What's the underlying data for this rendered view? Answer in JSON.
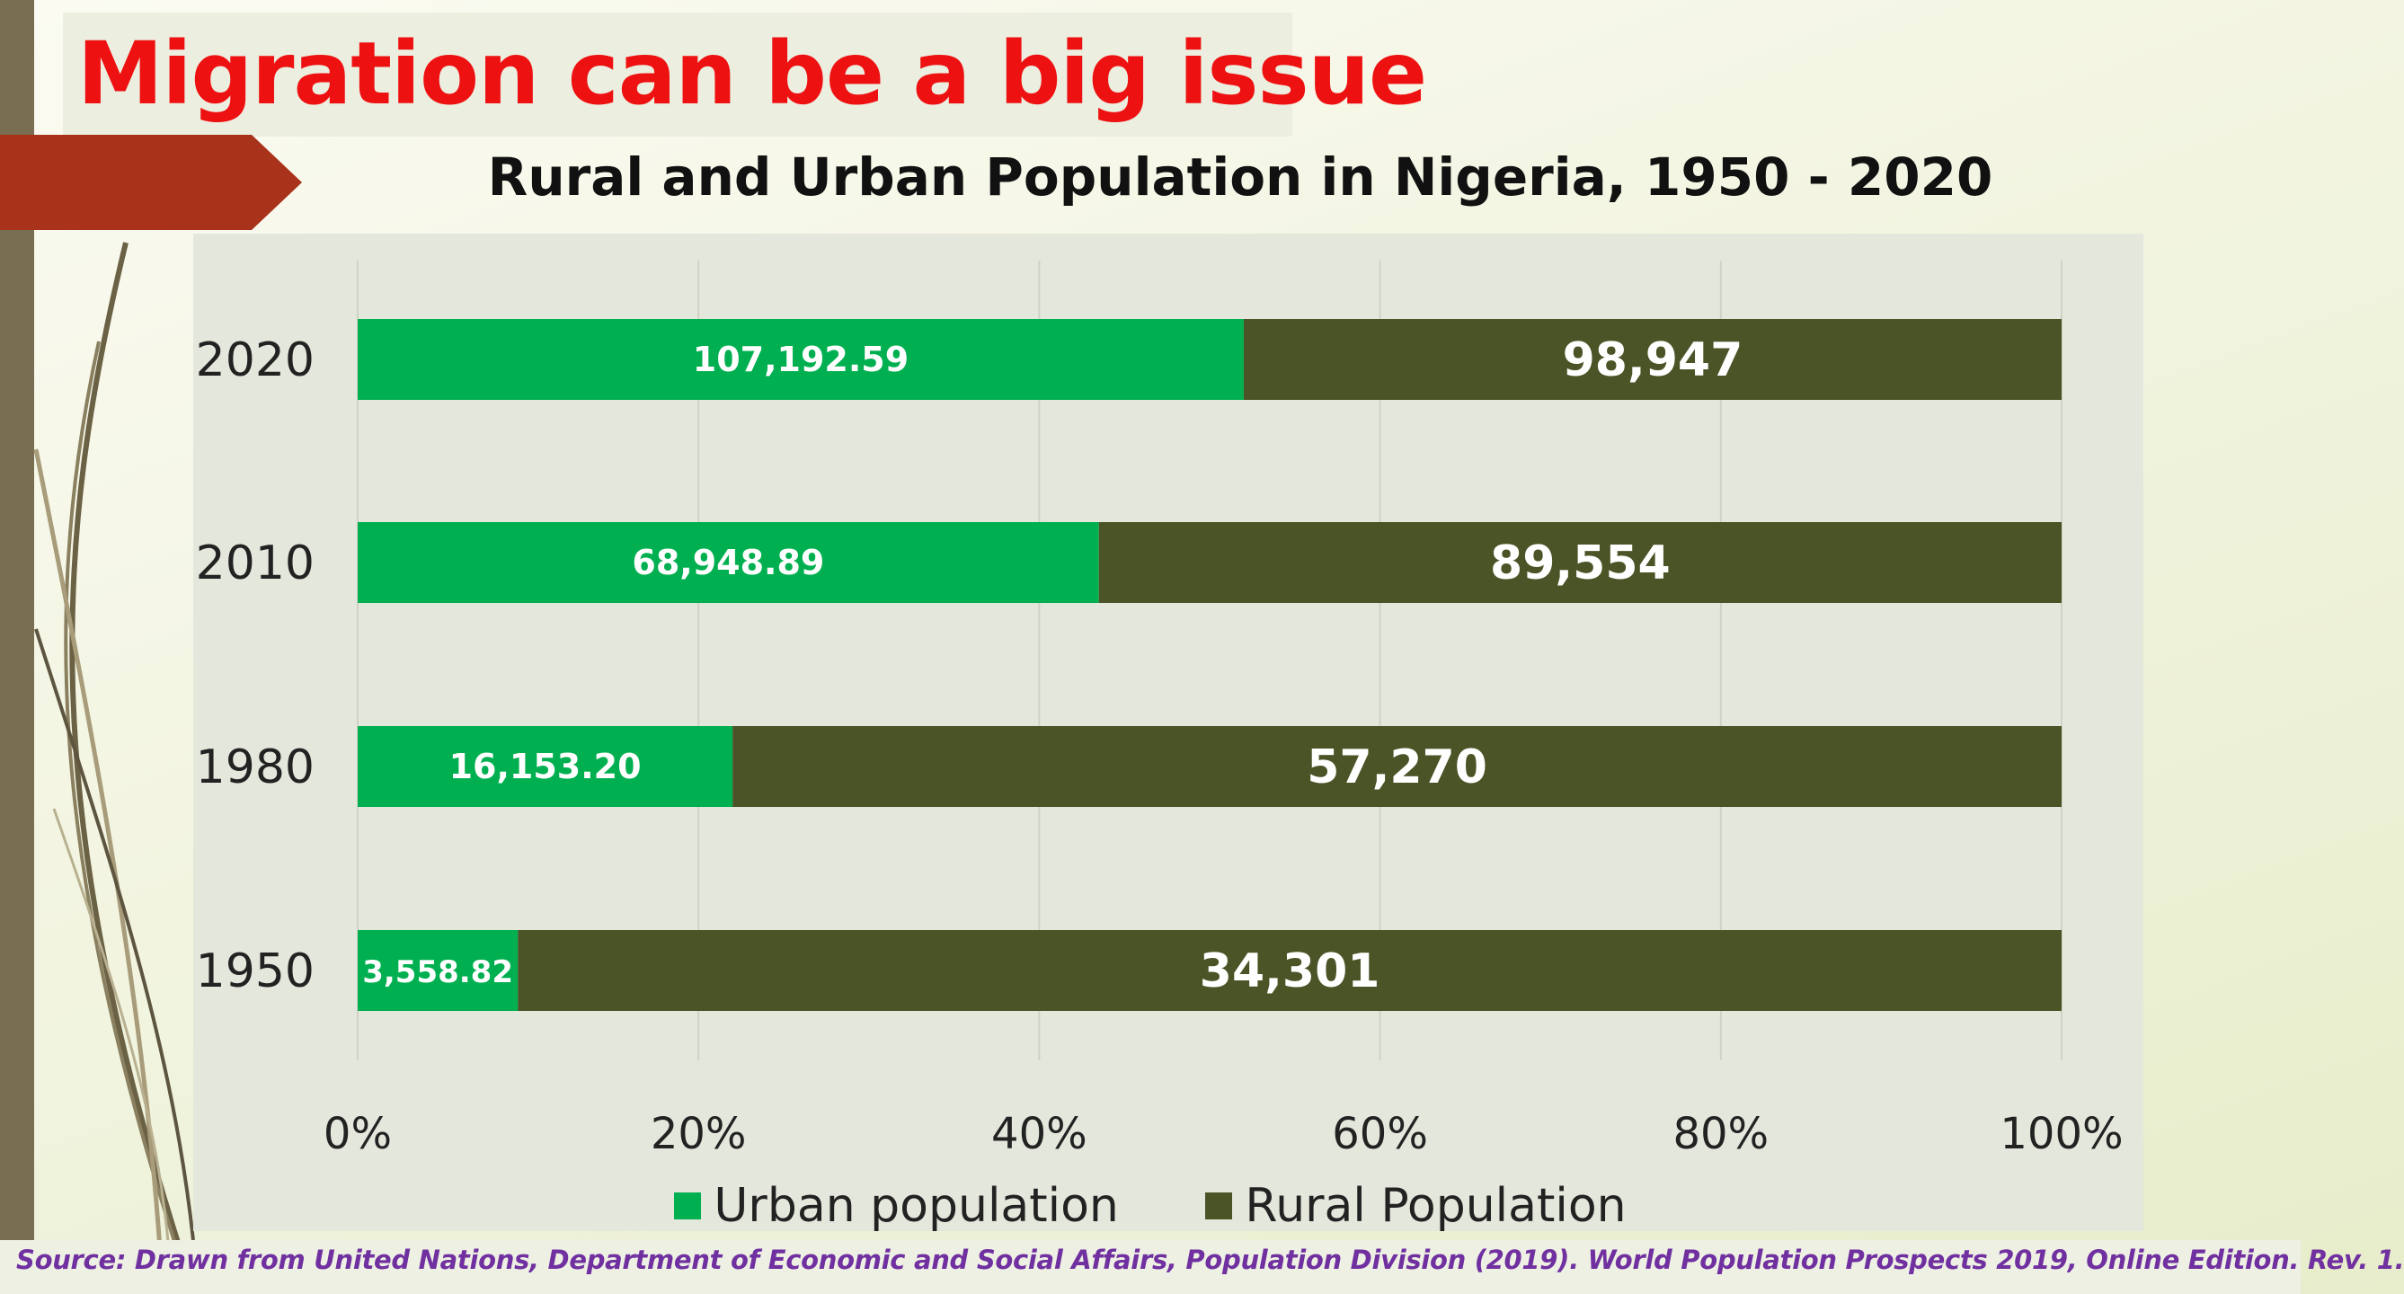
{
  "slide": {
    "title": "Migration can be a big issue",
    "source": "Source: Drawn from United Nations, Department of Economic and Social Affairs, Population Division (2019). World Population Prospects 2019, Online Edition. Rev. 1."
  },
  "colors": {
    "urban": "#00b050",
    "rural": "#4a5426",
    "title_red": "#ee1111",
    "arrow": "#a8321a",
    "source_purple": "#7030a0"
  },
  "chart_data": {
    "type": "bar",
    "orientation": "horizontal",
    "stacking": "100% stacked",
    "title": "Rural and Urban Population in Nigeria, 1950 - 2020",
    "categories": [
      "2020",
      "2010",
      "1980",
      "1950"
    ],
    "series": [
      {
        "name": "Urban population",
        "values": [
          107192.59,
          68948.89,
          16153.2,
          3558.82
        ],
        "labels": [
          "107,192.59",
          "68,948.89",
          "16,153.20",
          "3,558.82"
        ],
        "color": "#00b050"
      },
      {
        "name": "Rural Population",
        "values": [
          98947,
          89554,
          57270,
          34301
        ],
        "labels": [
          "98,947",
          "89,554",
          "57,270",
          "34,301"
        ],
        "color": "#4a5426"
      }
    ],
    "x_ticks": [
      "0%",
      "20%",
      "40%",
      "60%",
      "80%",
      "100%"
    ],
    "xlim": [
      0,
      100
    ],
    "grid": true,
    "legend": "bottom"
  }
}
